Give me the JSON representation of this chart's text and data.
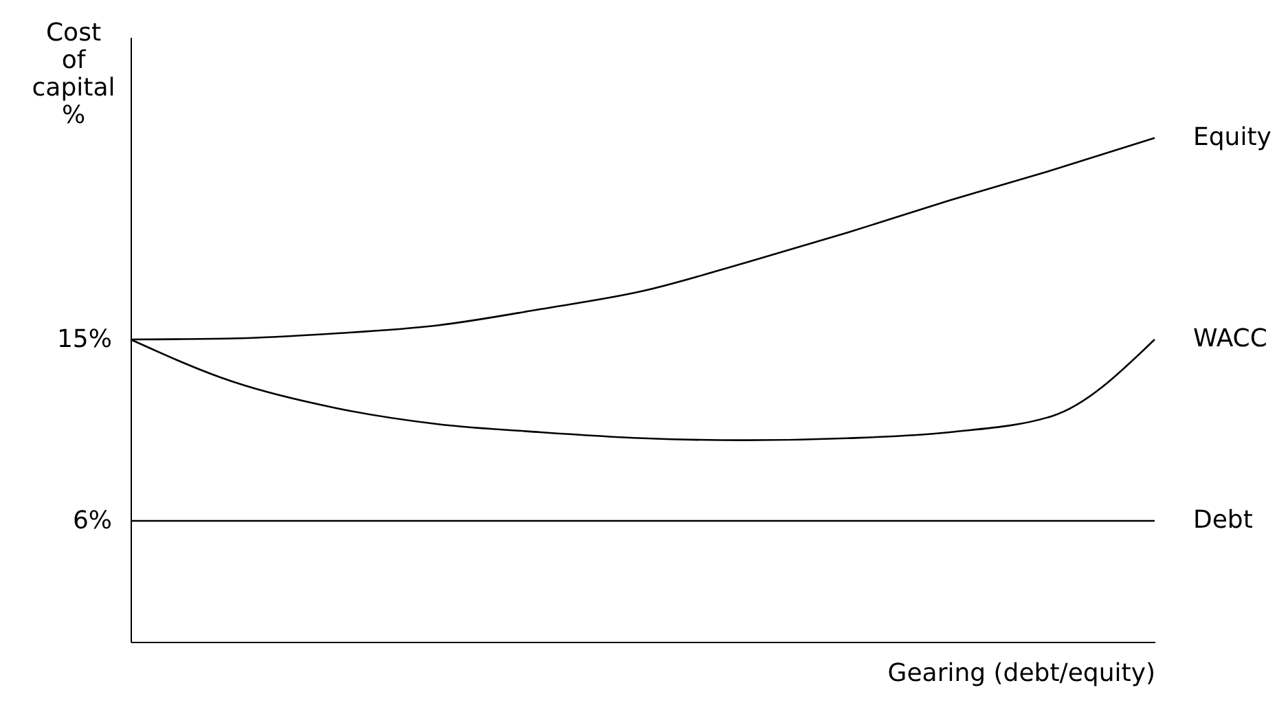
{
  "chart_data": {
    "type": "line",
    "ylabel": "Cost of capital %",
    "xlabel": "Gearing (debt/equity)",
    "categories": [
      null,
      null,
      null,
      null,
      null,
      null,
      null,
      null,
      null,
      null,
      null
    ],
    "series": [
      {
        "name": "Equity",
        "color": "#000000",
        "values": [
          15,
          15.05,
          15.3,
          15.7,
          16.5,
          17.4,
          18.8,
          20.3,
          21.9,
          23.4,
          25
        ]
      },
      {
        "name": "WACC",
        "color": "#000000",
        "values": [
          15,
          12.9,
          11.6,
          10.8,
          10.4,
          10.1,
          10.0,
          10.1,
          10.4,
          11.2,
          15
        ]
      },
      {
        "name": "Debt",
        "color": "#000000",
        "values": [
          6,
          6,
          6,
          6,
          6,
          6,
          6,
          6,
          6,
          6,
          6
        ]
      }
    ],
    "ylim": [
      0,
      30
    ],
    "yticks": [
      {
        "value": 15,
        "label": "15%"
      },
      {
        "value": 6,
        "label": "6%"
      }
    ],
    "grid": false,
    "legend": false,
    "marker": "none",
    "line_style": "solid",
    "tick_labels": "y"
  }
}
